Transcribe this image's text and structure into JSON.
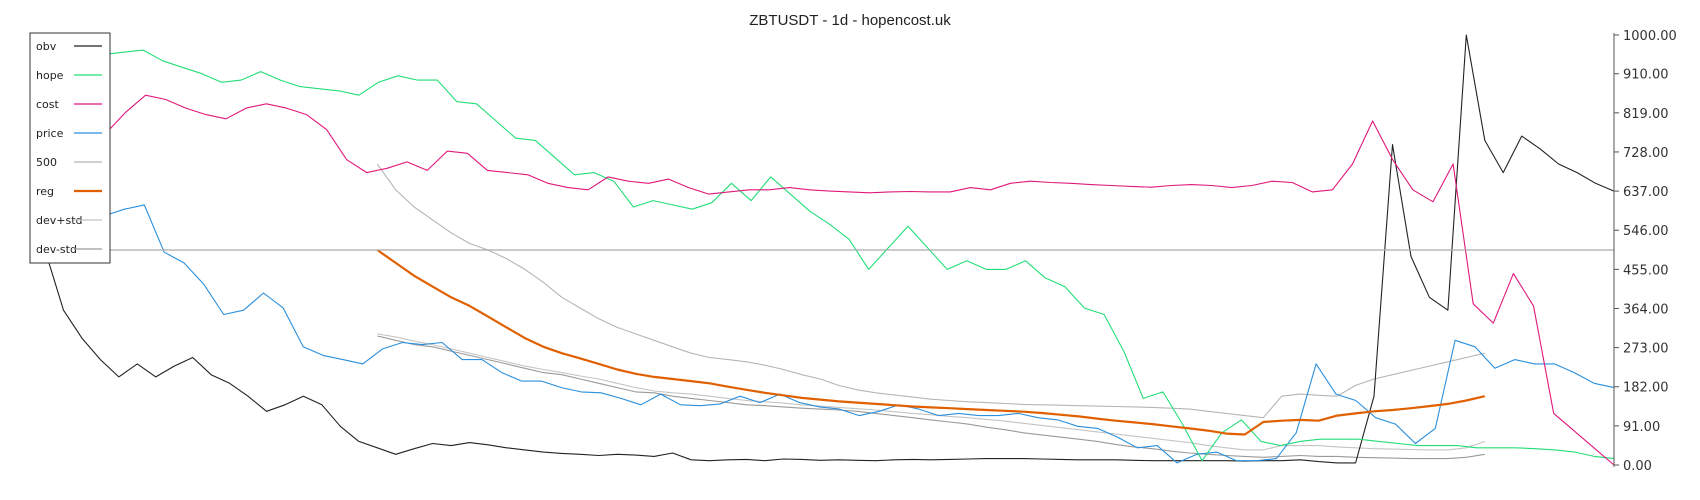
{
  "chart_data": {
    "type": "line",
    "title": "ZBTUSDT - 1d - hopencost.uk",
    "xlabel": "",
    "ylabel": "",
    "ylim": [
      0,
      1000
    ],
    "yticks": [
      "1000.00",
      "910.00",
      "819.00",
      "728.00",
      "637.00",
      "546.00",
      "455.00",
      "364.00",
      "273.00",
      "182.00",
      "91.00",
      "0.00"
    ],
    "ytick_values": [
      1000,
      910,
      819,
      728,
      637,
      546,
      455,
      364,
      273,
      182,
      91,
      0
    ],
    "hline": 500,
    "grid": false,
    "legend_position": "top-left",
    "colors": {
      "obv": "#222222",
      "hope": "#22dd77",
      "cost": "#e0187a",
      "price": "#2a8fdd",
      "500": "#b5b5b5",
      "reg": "#e06000",
      "dev+std": "#c4c4c4",
      "dev-std": "#9a9a9a"
    },
    "series": [
      {
        "name": "obv",
        "start": 0,
        "values": [
          500,
          360,
          295,
          245,
          205,
          235,
          205,
          230,
          250,
          210,
          190,
          160,
          125,
          140,
          160,
          140,
          90,
          55,
          40,
          25,
          38,
          50,
          45,
          52,
          47,
          40,
          35,
          30,
          27,
          25,
          22,
          25,
          23,
          20,
          28,
          12,
          10,
          12,
          13,
          10,
          14,
          13,
          11,
          12,
          11,
          10,
          12,
          13,
          12,
          13,
          14,
          15,
          15,
          15,
          14,
          13,
          12,
          12,
          12,
          11,
          10,
          10,
          10,
          10,
          10,
          9,
          10,
          10,
          12,
          8,
          5,
          5,
          160,
          745,
          485,
          390,
          360,
          1000,
          755,
          680,
          765,
          735,
          700,
          680,
          655,
          637
        ]
      },
      {
        "name": "hope",
        "start": 0,
        "values": [
          960,
          940,
          965,
          955,
          960,
          965,
          940,
          925,
          910,
          890,
          895,
          915,
          895,
          880,
          875,
          870,
          860,
          890,
          905,
          895,
          895,
          845,
          840,
          800,
          760,
          755,
          715,
          675,
          680,
          660,
          600,
          615,
          605,
          595,
          610,
          655,
          615,
          670,
          630,
          590,
          560,
          525,
          455,
          505,
          555,
          505,
          455,
          475,
          455,
          455,
          475,
          435,
          415,
          365,
          350,
          265,
          155,
          170,
          95,
          10,
          75,
          105,
          55,
          45,
          55,
          60,
          60,
          60,
          55,
          50,
          45,
          45,
          45,
          40,
          40,
          40,
          38,
          35,
          30,
          20,
          15
        ]
      },
      {
        "name": "cost",
        "start": 0,
        "values": [
          790,
          785,
          790,
          770,
          820,
          860,
          850,
          830,
          815,
          805,
          830,
          840,
          830,
          815,
          780,
          710,
          680,
          690,
          705,
          685,
          730,
          725,
          685,
          680,
          675,
          655,
          645,
          640,
          670,
          660,
          655,
          665,
          645,
          630,
          635,
          640,
          640,
          645,
          640,
          637,
          635,
          633,
          635,
          636,
          635,
          635,
          645,
          640,
          655,
          660,
          657,
          655,
          652,
          650,
          648,
          646,
          650,
          652,
          650,
          645,
          650,
          660,
          657,
          635,
          640,
          700,
          800,
          710,
          640,
          612,
          700,
          375,
          330,
          445,
          370,
          120,
          80,
          40,
          0
        ]
      },
      {
        "name": "price",
        "start": 0,
        "values": [
          640,
          530,
          605,
          580,
          595,
          605,
          495,
          470,
          420,
          350,
          360,
          400,
          365,
          275,
          255,
          245,
          235,
          270,
          285,
          280,
          285,
          245,
          245,
          215,
          195,
          195,
          180,
          170,
          168,
          155,
          140,
          165,
          140,
          138,
          142,
          160,
          145,
          165,
          145,
          135,
          130,
          115,
          125,
          140,
          130,
          115,
          120,
          115,
          115,
          120,
          110,
          105,
          90,
          85,
          65,
          40,
          45,
          5,
          25,
          30,
          10,
          10,
          15,
          75,
          235,
          165,
          150,
          110,
          95,
          50,
          85,
          290,
          275,
          225,
          245,
          235,
          235,
          215,
          190,
          180
        ]
      },
      {
        "name": "500",
        "start": 18,
        "values": [
          700,
          640,
          600,
          570,
          540,
          515,
          500,
          480,
          455,
          425,
          390,
          365,
          340,
          320,
          305,
          290,
          275,
          260,
          250,
          245,
          240,
          232,
          222,
          210,
          200,
          185,
          175,
          168,
          163,
          158,
          153,
          150,
          147,
          145,
          143,
          141,
          140,
          139,
          138,
          137,
          136,
          135,
          134,
          132,
          130,
          125,
          120,
          115,
          110,
          160,
          165,
          162,
          160,
          185,
          200,
          210,
          220,
          230,
          240,
          250,
          260
        ]
      },
      {
        "name": "reg",
        "start": 18,
        "values": [
          500,
          470,
          440,
          415,
          390,
          370,
          345,
          320,
          295,
          275,
          260,
          248,
          235,
          222,
          212,
          205,
          200,
          195,
          190,
          182,
          175,
          168,
          162,
          156,
          152,
          148,
          145,
          142,
          139,
          136,
          134,
          132,
          130,
          128,
          126,
          124,
          121,
          117,
          113,
          108,
          103,
          99,
          95,
          90,
          85,
          80,
          73,
          71,
          100,
          103,
          105,
          103,
          115,
          120,
          125,
          128,
          132,
          137,
          142,
          150,
          160
        ]
      },
      {
        "name": "dev+std",
        "start": 18,
        "values": [
          305,
          298,
          288,
          280,
          270,
          260,
          250,
          240,
          230,
          222,
          215,
          207,
          200,
          190,
          180,
          172,
          168,
          165,
          160,
          155,
          150,
          147,
          144,
          140,
          137,
          134,
          131,
          128,
          124,
          120,
          117,
          113,
          110,
          106,
          102,
          97,
          92,
          87,
          82,
          77,
          72,
          67,
          62,
          57,
          52,
          45,
          40,
          35,
          35,
          45,
          45,
          45,
          42,
          40,
          38,
          37,
          36,
          35,
          35,
          40,
          55
        ]
      },
      {
        "name": "dev-std",
        "start": 18,
        "values": [
          300,
          290,
          280,
          275,
          265,
          255,
          245,
          235,
          225,
          215,
          210,
          200,
          190,
          180,
          170,
          168,
          160,
          155,
          150,
          145,
          140,
          138,
          135,
          132,
          130,
          128,
          125,
          120,
          115,
          110,
          105,
          100,
          95,
          88,
          82,
          75,
          70,
          65,
          60,
          55,
          48,
          42,
          38,
          32,
          28,
          25,
          22,
          20,
          18,
          20,
          22,
          20,
          20,
          18,
          17,
          16,
          15,
          15,
          15,
          18,
          25
        ]
      }
    ]
  }
}
